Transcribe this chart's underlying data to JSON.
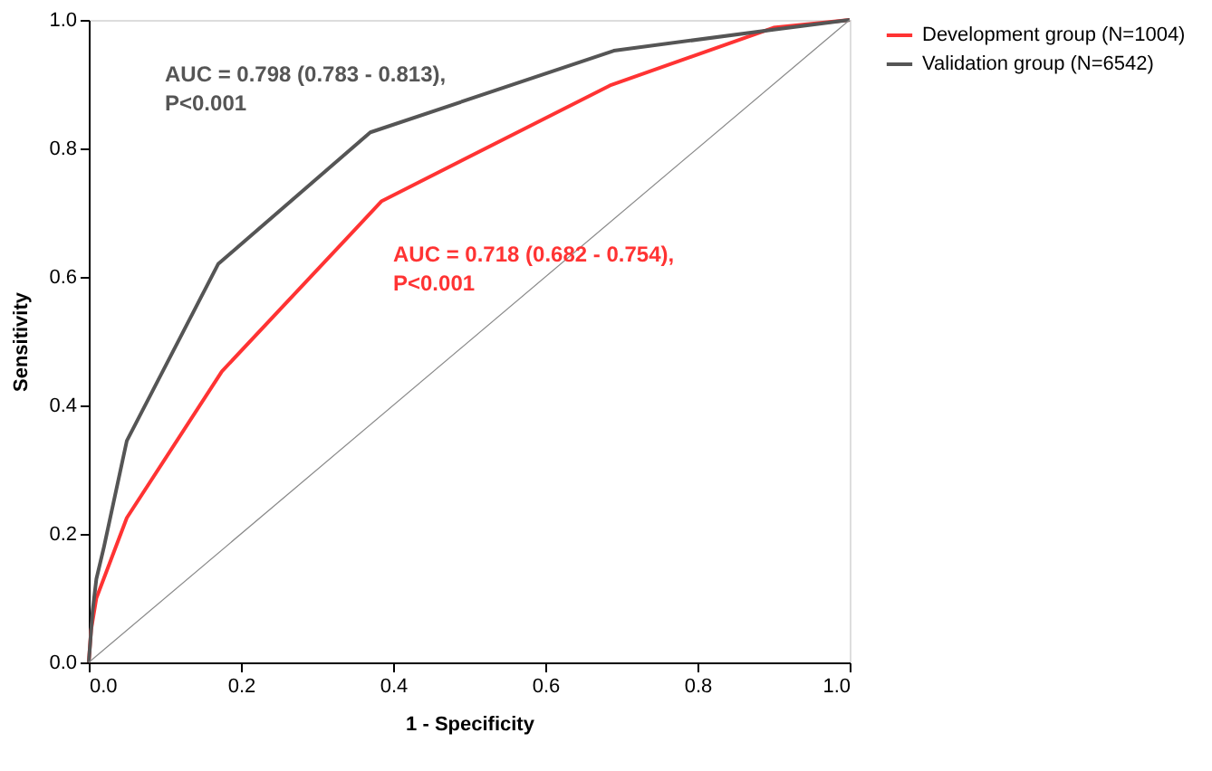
{
  "chart_data": {
    "type": "line",
    "xlabel": "1 - Specificity",
    "ylabel": "Sensitivity",
    "xlim": [
      0,
      1
    ],
    "ylim": [
      0,
      1
    ],
    "xticks": [
      "0.0",
      0.2,
      0.4,
      0.6,
      0.8,
      "1.0"
    ],
    "yticks": [
      "0.0",
      0.2,
      0.4,
      0.6,
      0.8,
      "1.0"
    ],
    "series": [
      {
        "name": "Development group (N=1004)",
        "color": "#ff3333",
        "x": [
          0,
          0.003,
          0.01,
          0.05,
          0.175,
          0.385,
          0.685,
          0.9,
          1
        ],
        "values": [
          0,
          0.05,
          0.1,
          0.225,
          0.453,
          0.718,
          0.898,
          0.988,
          1
        ]
      },
      {
        "name": "Validation group (N=6542)",
        "color": "#555555",
        "x": [
          0,
          0.005,
          0.01,
          0.02,
          0.05,
          0.17,
          0.37,
          0.69,
          0.9,
          1
        ],
        "values": [
          0,
          0.08,
          0.13,
          0.18,
          0.345,
          0.62,
          0.825,
          0.952,
          0.985,
          1
        ]
      },
      {
        "color": "#888888",
        "x": [
          0,
          1
        ],
        "values": [
          0,
          1
        ]
      }
    ],
    "annotations": [
      "AUC = 0.798 (0.783 - 0.813),\nP<0.001",
      "AUC = 0.718 (0.682 - 0.754),\nP<0.001"
    ],
    "legend": "right",
    "grid": false
  }
}
